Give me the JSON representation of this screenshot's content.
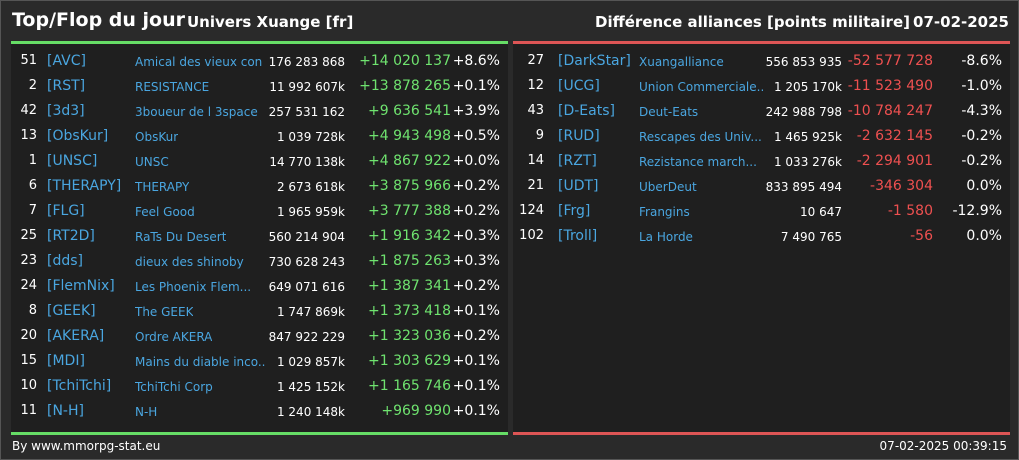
{
  "header": {
    "title": "Top/Flop du jour",
    "universe": "Univers Xuange [fr]",
    "subtitle": "Différence alliances [points militaire]",
    "date": "07-02-2025"
  },
  "colors": {
    "positive": "#6fe36f",
    "negative": "#ee5050",
    "tag": "#4aa6e0",
    "top_border": "#66dd66",
    "flop_border": "#dd5555"
  },
  "top": [
    {
      "rank": "51",
      "tag": "[AVC]",
      "name": "Amical des vieux con",
      "points": "176 283 868",
      "diff": "+14 020 137",
      "pct": "+8.6%"
    },
    {
      "rank": "2",
      "tag": "[RST]",
      "name": "RESISTANCE",
      "points": "11 992 607k",
      "diff": "+13 878 265",
      "pct": "+0.1%"
    },
    {
      "rank": "42",
      "tag": "[3d3]",
      "name": "3boueur de l 3space",
      "points": "257 531 162",
      "diff": "+9 636 541",
      "pct": "+3.9%"
    },
    {
      "rank": "13",
      "tag": "[ObsKur]",
      "name": "ObsKur",
      "points": "1 039 728k",
      "diff": "+4 943 498",
      "pct": "+0.5%"
    },
    {
      "rank": "1",
      "tag": "[UNSC]",
      "name": "UNSC",
      "points": "14 770 138k",
      "diff": "+4 867 922",
      "pct": "+0.0%"
    },
    {
      "rank": "6",
      "tag": "[THERAPY]",
      "name": "THERAPY",
      "points": "2 673 618k",
      "diff": "+3 875 966",
      "pct": "+0.2%"
    },
    {
      "rank": "7",
      "tag": "[FLG]",
      "name": "Feel Good",
      "points": "1 965 959k",
      "diff": "+3 777 388",
      "pct": "+0.2%"
    },
    {
      "rank": "25",
      "tag": "[RT2D]",
      "name": "RaTs Du Desert",
      "points": "560 214 904",
      "diff": "+1 916 342",
      "pct": "+0.3%"
    },
    {
      "rank": "23",
      "tag": "[dds]",
      "name": "dieux des shinoby",
      "points": "730 628 243",
      "diff": "+1 875 263",
      "pct": "+0.3%"
    },
    {
      "rank": "24",
      "tag": "[FlemNix]",
      "name": "Les Phoenix Flem...",
      "points": "649 071 616",
      "diff": "+1 387 341",
      "pct": "+0.2%"
    },
    {
      "rank": "8",
      "tag": "[GEEK]",
      "name": "The GEEK",
      "points": "1 747 869k",
      "diff": "+1 373 418",
      "pct": "+0.1%"
    },
    {
      "rank": "20",
      "tag": "[AKERA]",
      "name": "Ordre AKERA",
      "points": "847 922 229",
      "diff": "+1 323 036",
      "pct": "+0.2%"
    },
    {
      "rank": "15",
      "tag": "[MDI]",
      "name": "Mains du diable inco...",
      "points": "1 029 857k",
      "diff": "+1 303 629",
      "pct": "+0.1%"
    },
    {
      "rank": "10",
      "tag": "[TchiTchi]",
      "name": "TchiTchi Corp",
      "points": "1 425 152k",
      "diff": "+1 165 746",
      "pct": "+0.1%"
    },
    {
      "rank": "11",
      "tag": "[N-H]",
      "name": "N-H",
      "points": "1 240 148k",
      "diff": "+969 990",
      "pct": "+0.1%"
    }
  ],
  "flop": [
    {
      "rank": "27",
      "tag": "[DarkStar]",
      "name": "Xuangalliance",
      "points": "556 853 935",
      "diff": "-52 577 728",
      "pct": "-8.6%"
    },
    {
      "rank": "12",
      "tag": "[UCG]",
      "name": "Union Commerciale...",
      "points": "1 205 170k",
      "diff": "-11 523 490",
      "pct": "-1.0%"
    },
    {
      "rank": "43",
      "tag": "[D-Eats]",
      "name": "Deut-Eats",
      "points": "242 988 798",
      "diff": "-10 784 247",
      "pct": "-4.3%"
    },
    {
      "rank": "9",
      "tag": "[RUD]",
      "name": "Rescapes des Univ...",
      "points": "1 465 925k",
      "diff": "-2 632 145",
      "pct": "-0.2%"
    },
    {
      "rank": "14",
      "tag": "[RZT]",
      "name": "Rezistance march...",
      "points": "1 033 276k",
      "diff": "-2 294 901",
      "pct": "-0.2%"
    },
    {
      "rank": "21",
      "tag": "[UDT]",
      "name": "UberDeut",
      "points": "833 895 494",
      "diff": "-346 304",
      "pct": "0.0%"
    },
    {
      "rank": "124",
      "tag": "[Frg]",
      "name": "Frangins",
      "points": "10 647",
      "diff": "-1 580",
      "pct": "-12.9%"
    },
    {
      "rank": "102",
      "tag": "[Troll]",
      "name": "La Horde",
      "points": "7 490 765",
      "diff": "-56",
      "pct": "0.0%"
    }
  ],
  "footer": {
    "source": "By www.mmorpg-stat.eu",
    "timestamp": "07-02-2025 00:39:15"
  }
}
